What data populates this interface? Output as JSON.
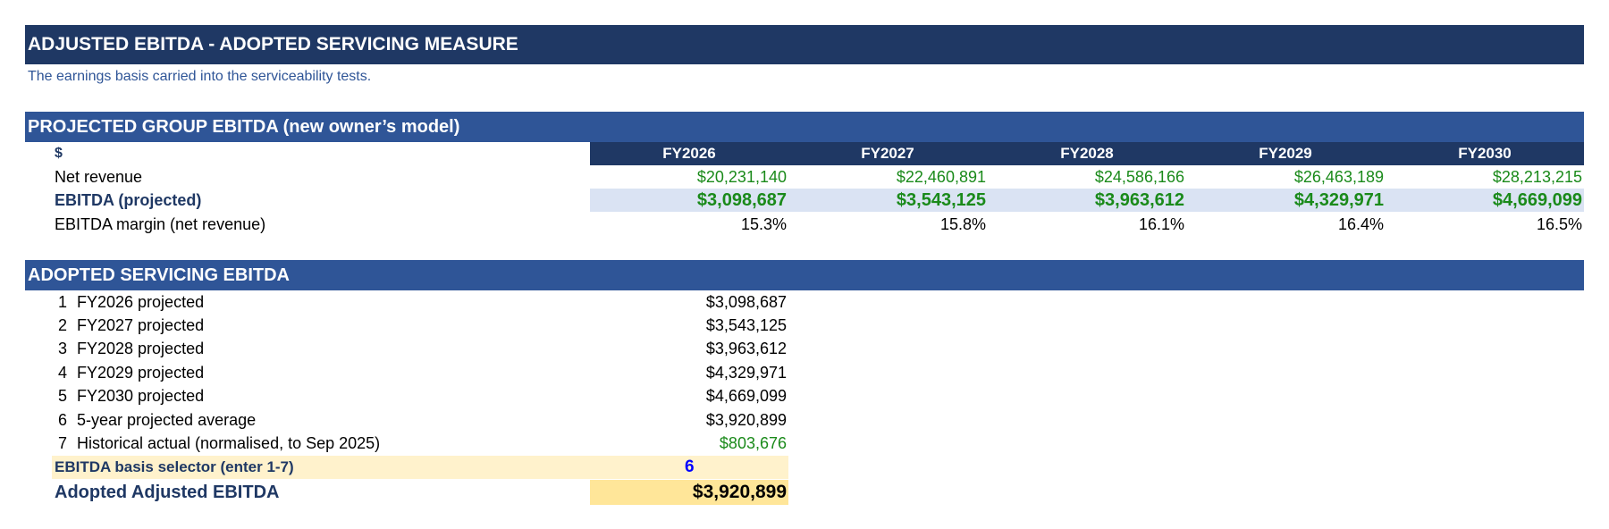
{
  "title": "ADJUSTED EBITDA - ADOPTED SERVICING MEASURE",
  "subtitle": "The earnings basis carried into the serviceability tests.",
  "projected": {
    "section_title": "PROJECTED GROUP EBITDA (new owner’s model)",
    "unit_label": "$",
    "years": [
      "FY2026",
      "FY2027",
      "FY2028",
      "FY2029",
      "FY2030"
    ],
    "rows": {
      "net_revenue": {
        "label": "Net revenue",
        "values": [
          "$20,231,140",
          "$22,460,891",
          "$24,586,166",
          "$26,463,189",
          "$28,213,215"
        ]
      },
      "ebitda": {
        "label": "EBITDA (projected)",
        "values": [
          "$3,098,687",
          "$3,543,125",
          "$3,963,612",
          "$4,329,971",
          "$4,669,099"
        ]
      },
      "margin": {
        "label": "EBITDA margin (net revenue)",
        "values": [
          "15.3%",
          "15.8%",
          "16.1%",
          "16.4%",
          "16.5%"
        ]
      }
    }
  },
  "adopted": {
    "section_title": "ADOPTED SERVICING EBITDA",
    "options": [
      {
        "num": "1",
        "label": "FY2026 projected",
        "value": "$3,098,687"
      },
      {
        "num": "2",
        "label": "FY2027 projected",
        "value": "$3,543,125"
      },
      {
        "num": "3",
        "label": "FY2028 projected",
        "value": "$3,963,612"
      },
      {
        "num": "4",
        "label": "FY2029 projected",
        "value": "$4,329,971"
      },
      {
        "num": "5",
        "label": "FY2030 projected",
        "value": "$4,669,099"
      },
      {
        "num": "6",
        "label": "5-year projected average",
        "value": "$3,920,899"
      },
      {
        "num": "7",
        "label": "Historical actual (normalised, to Sep 2025)",
        "value": "$803,676"
      }
    ],
    "selector_label": "EBITDA basis selector  (enter 1-7)",
    "selector_value": "6",
    "result_label": "Adopted Adjusted EBITDA",
    "result_value": "$3,920,899"
  },
  "colors": {
    "title_bg": "#1f3864",
    "section_bg": "#2f5597",
    "input_green": "#1a8a1a",
    "selector_bg": "#fff2cc",
    "result_bg": "#ffe699",
    "ebitda_band": "#dae3f3"
  }
}
